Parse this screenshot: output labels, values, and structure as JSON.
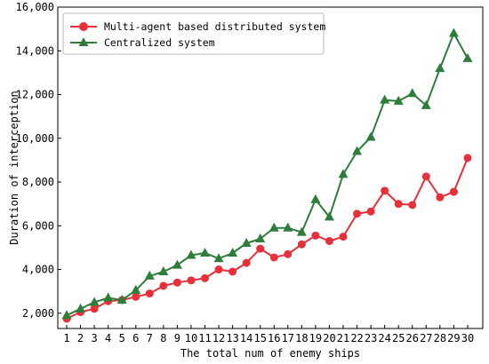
{
  "chart_data": {
    "type": "line",
    "xlabel": "The total num of enemy ships",
    "ylabel": "Duration of interception",
    "categories": [
      1,
      2,
      3,
      4,
      5,
      6,
      7,
      8,
      9,
      10,
      11,
      12,
      13,
      14,
      15,
      16,
      17,
      18,
      19,
      20,
      21,
      22,
      23,
      24,
      25,
      26,
      27,
      28,
      29,
      30
    ],
    "xtick_labels": [
      "1",
      "2",
      "3",
      "4",
      "5",
      "6",
      "7",
      "8",
      "9",
      "10",
      "11",
      "12",
      "13",
      "14",
      "15",
      "16",
      "17",
      "18",
      "19",
      "20",
      "21",
      "22",
      "23",
      "24",
      "25",
      "26",
      "27",
      "28",
      "29",
      "30"
    ],
    "ylim": [
      1300,
      16000
    ],
    "yticks": [
      2000,
      4000,
      6000,
      8000,
      10000,
      12000,
      14000,
      16000
    ],
    "ytick_labels": [
      "2,000",
      "4,000",
      "6,000",
      "8,000",
      "10,000",
      "12,000",
      "14,000",
      "16,000"
    ],
    "grid": false,
    "legend_position": "top-left",
    "series": [
      {
        "name": "Multi-agent based distributed system",
        "color": "#e8303a",
        "marker": "circle",
        "values": [
          1750,
          2050,
          2200,
          2550,
          2600,
          2750,
          2900,
          3250,
          3400,
          3500,
          3600,
          4000,
          3900,
          4300,
          4950,
          4550,
          4700,
          5150,
          5550,
          5300,
          5500,
          6550,
          6650,
          7600,
          7000,
          6950,
          8250,
          7300,
          7550,
          9100
        ]
      },
      {
        "name": "Centralized system",
        "color": "#2e7d3a",
        "marker": "triangle",
        "values": [
          1900,
          2200,
          2500,
          2700,
          2600,
          3050,
          3700,
          3900,
          4200,
          4650,
          4750,
          4500,
          4750,
          5200,
          5400,
          5900,
          5900,
          5700,
          7200,
          6400,
          8350,
          9400,
          10050,
          11750,
          11700,
          12050,
          11500,
          13200,
          14800,
          13650
        ]
      }
    ]
  }
}
